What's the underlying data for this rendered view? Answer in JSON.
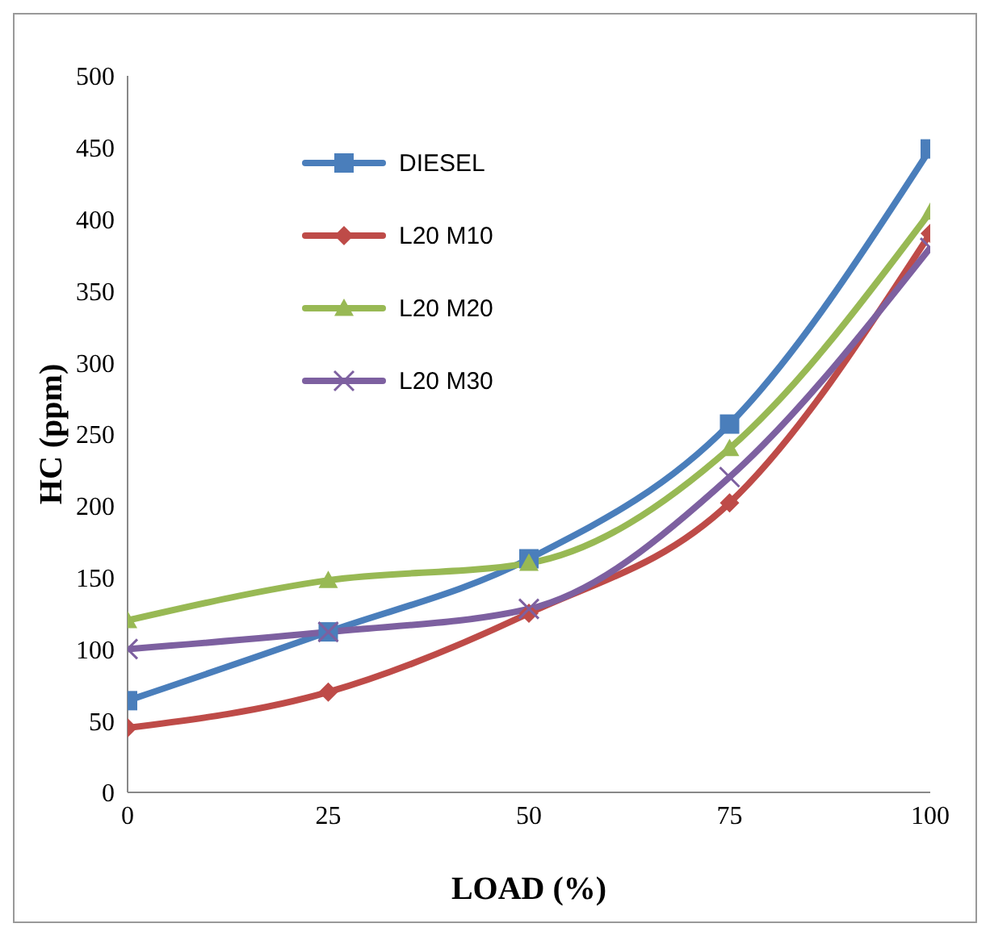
{
  "chart_data": {
    "type": "line",
    "xlabel": "LOAD  (%)",
    "ylabel": "HC  (ppm)",
    "x": [
      0,
      25,
      50,
      75,
      100
    ],
    "xlim": [
      0,
      100
    ],
    "xticks": [
      0,
      25,
      50,
      75,
      100
    ],
    "ylim": [
      0,
      500
    ],
    "yticks": [
      0,
      50,
      100,
      150,
      200,
      250,
      300,
      350,
      400,
      450,
      500
    ],
    "legend": "top left",
    "series": [
      {
        "name": "DIESEL",
        "color": "#4a7ebb",
        "marker": "square",
        "values": [
          64,
          112,
          163,
          257,
          449
        ]
      },
      {
        "name": "L20 M10",
        "color": "#be4b48",
        "marker": "diamond",
        "values": [
          45,
          70,
          125,
          202,
          390
        ]
      },
      {
        "name": "L20 M20",
        "color": "#98b954",
        "marker": "triangle",
        "values": [
          120,
          148,
          160,
          240,
          405
        ]
      },
      {
        "name": "L20 M30",
        "color": "#7d60a0",
        "marker": "cross",
        "values": [
          100,
          112,
          128,
          220,
          380
        ]
      }
    ]
  }
}
